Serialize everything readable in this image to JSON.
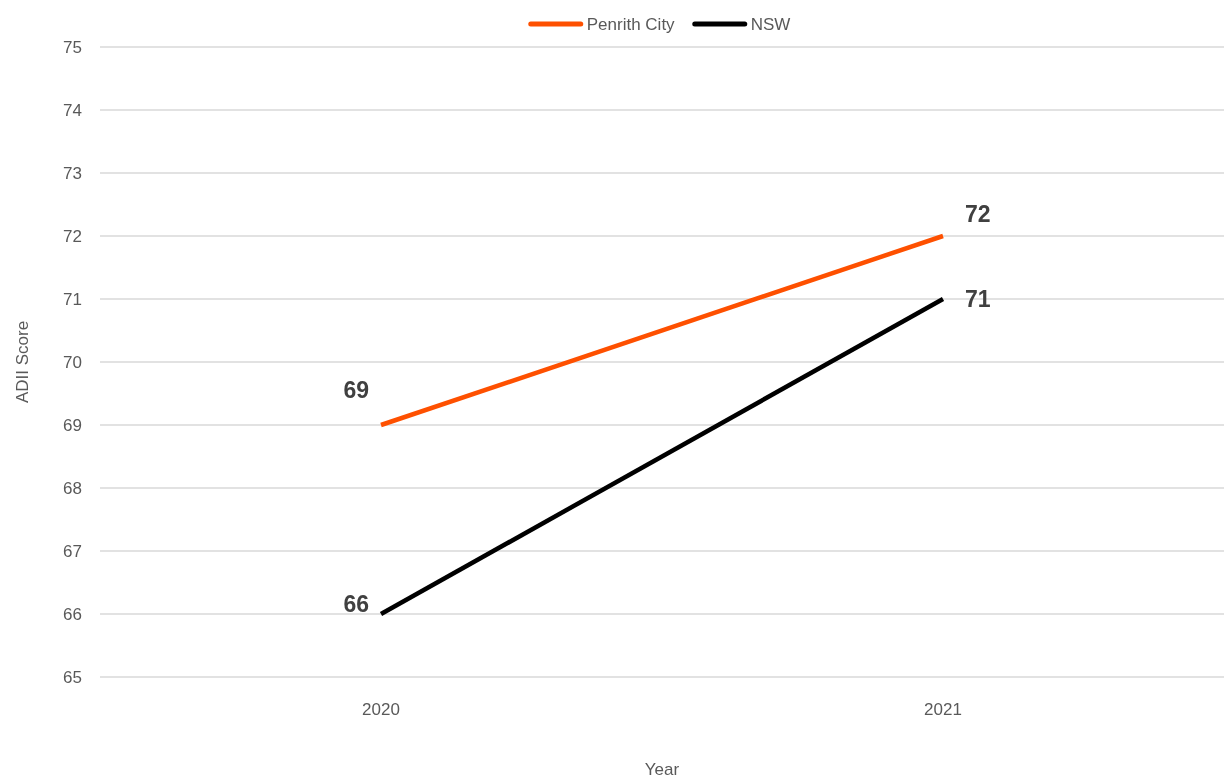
{
  "chart_data": {
    "type": "line",
    "xlabel": "Year",
    "ylabel": "ADII Score",
    "categories": [
      "2020",
      "2021"
    ],
    "series": [
      {
        "name": "Penrith City",
        "color": "#fe5000",
        "values": [
          69,
          72
        ]
      },
      {
        "name": "NSW",
        "color": "#000000",
        "values": [
          66,
          71
        ]
      }
    ],
    "ylim": [
      65,
      75
    ],
    "yticks": [
      65,
      66,
      67,
      68,
      69,
      70,
      71,
      72,
      73,
      74,
      75
    ],
    "grid": "y",
    "legend": "top",
    "data_labels": true,
    "marker": "none",
    "line_style": "solid"
  }
}
